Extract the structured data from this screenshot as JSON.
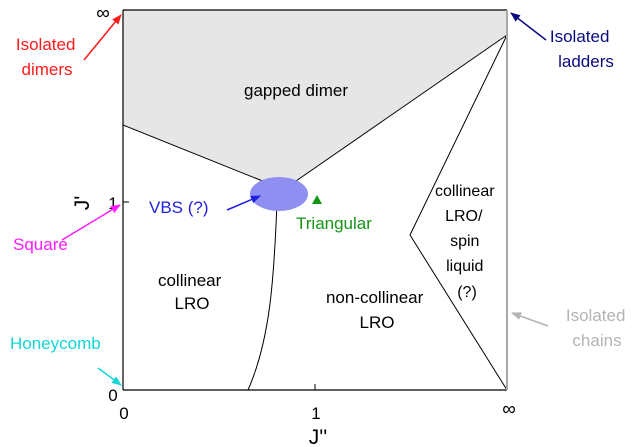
{
  "axes": {
    "x_label": "J''",
    "y_label": "J'",
    "x_ticks": [
      "0",
      "1",
      "∞"
    ],
    "y_ticks": [
      "0",
      "1",
      "∞"
    ]
  },
  "regions": {
    "gapped_dimer": "gapped dimer",
    "collinear_lro": [
      "collinear",
      "LRO"
    ],
    "non_collinear_lro": [
      "non-collinear",
      "LRO"
    ],
    "collinear_spin_liquid": [
      "collinear",
      "LRO/",
      "spin",
      "liquid",
      "(?)"
    ]
  },
  "points": {
    "vbs": "VBS (?)",
    "triangular": "Triangular"
  },
  "limits": {
    "isolated_dimers": [
      "Isolated",
      "dimers"
    ],
    "square": "Square",
    "honeycomb": "Honeycomb",
    "isolated_ladders": [
      "Isolated",
      "ladders"
    ],
    "isolated_chains": [
      "Isolated",
      "chains"
    ]
  },
  "colors": {
    "gapped_fill": "#e6e6e6",
    "vbs_fill": "#8f8ff2",
    "vbs_text": "#1f1fe0",
    "triangular": "#149614",
    "isolated_dimers": "#ff1a1a",
    "square": "#ff1aff",
    "honeycomb": "#12d6d6",
    "isolated_ladders": "#0a0a80",
    "isolated_chains": "#b4b4b4"
  }
}
